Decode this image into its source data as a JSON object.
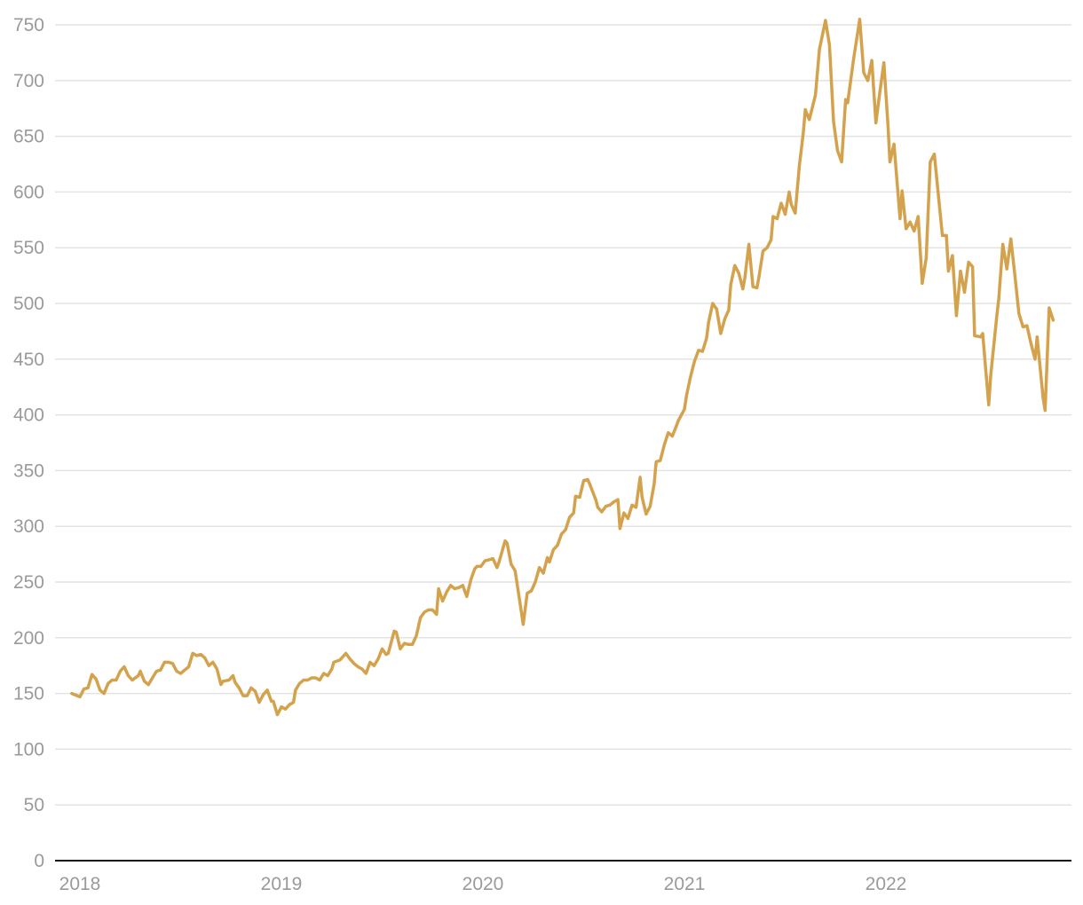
{
  "chart_data": {
    "type": "line",
    "title": "",
    "xlabel": "",
    "ylabel": "",
    "ylim": [
      0,
      750
    ],
    "yticks": [
      "0",
      "50",
      "100",
      "150",
      "200",
      "250",
      "300",
      "350",
      "400",
      "450",
      "500",
      "550",
      "600",
      "650",
      "700",
      "750"
    ],
    "xticks": [
      "2018",
      "2019",
      "2020",
      "2021",
      "2022"
    ],
    "grid": "horizontal",
    "line_color": "#d4a24c",
    "series": [
      {
        "x": [
          2017.96,
          2018.0,
          2018.02,
          2018.04,
          2018.06,
          2018.08,
          2018.1,
          2018.12,
          2018.14,
          2018.16,
          2018.18,
          2018.2,
          2018.22,
          2018.24,
          2018.26,
          2018.29,
          2018.3,
          2018.32,
          2018.34,
          2018.36,
          2018.38,
          2018.4,
          2018.42,
          2018.44,
          2018.46,
          2018.48,
          2018.5,
          2018.52,
          2018.54,
          2018.56,
          2018.58,
          2018.6,
          2018.62,
          2018.64,
          2018.66,
          2018.68,
          2018.7,
          2018.71,
          2018.74,
          2018.76,
          2018.77,
          2018.79,
          2018.81,
          2018.83,
          2018.85,
          2018.87,
          2018.89,
          2018.91,
          2018.93,
          2018.95,
          2018.96,
          2018.98,
          2019.0,
          2019.02,
          2019.04,
          2019.06,
          2019.07,
          2019.09,
          2019.11,
          2019.13,
          2019.15,
          2019.17,
          2019.19,
          2019.21,
          2019.23,
          2019.25,
          2019.26,
          2019.29,
          2019.3,
          2019.32,
          2019.34,
          2019.36,
          2019.38,
          2019.4,
          2019.42,
          2019.44,
          2019.46,
          2019.48,
          2019.5,
          2019.52,
          2019.53,
          2019.56,
          2019.57,
          2019.59,
          2019.61,
          2019.63,
          2019.65,
          2019.67,
          2019.69,
          2019.71,
          2019.73,
          2019.75,
          2019.77,
          2019.78,
          2019.8,
          2019.82,
          2019.84,
          2019.86,
          2019.88,
          2019.9,
          2019.92,
          2019.94,
          2019.96,
          2019.97,
          2019.99,
          2020.01,
          2020.03,
          2020.05,
          2020.07,
          2020.08,
          2020.11,
          2020.12,
          2020.14,
          2020.16,
          2020.18,
          2020.2,
          2020.22,
          2020.24,
          2020.26,
          2020.28,
          2020.3,
          2020.32,
          2020.33,
          2020.35,
          2020.37,
          2020.39,
          2020.41,
          2020.43,
          2020.45,
          2020.46,
          2020.48,
          2020.5,
          2020.52,
          2020.53,
          2020.56,
          2020.57,
          2020.59,
          2020.61,
          2020.63,
          2020.65,
          2020.67,
          2020.68,
          2020.7,
          2020.72,
          2020.74,
          2020.76,
          2020.78,
          2020.79,
          2020.81,
          2020.83,
          2020.85,
          2020.86,
          2020.88,
          2020.9,
          2020.92,
          2020.94,
          2020.96,
          2020.97,
          2021.0,
          2021.01,
          2021.03,
          2021.05,
          2021.07,
          2021.09,
          2021.11,
          2021.12,
          2021.14,
          2021.16,
          2021.18,
          2021.2,
          2021.22,
          2021.23,
          2021.25,
          2021.27,
          2021.29,
          2021.3,
          2021.32,
          2021.34,
          2021.36,
          2021.37,
          2021.39,
          2021.41,
          2021.43,
          2021.44,
          2021.46,
          2021.48,
          2021.5,
          2021.52,
          2021.53,
          2021.55,
          2021.57,
          2021.59,
          2021.6,
          2021.62,
          2021.65,
          2021.67,
          2021.7,
          2021.72,
          2021.74,
          2021.76,
          2021.78,
          2021.8,
          2021.81,
          2021.84,
          2021.87,
          2021.89,
          2021.91,
          2021.93,
          2021.95,
          2021.97,
          2021.99,
          2022.01,
          2022.02,
          2022.04,
          2022.07,
          2022.08,
          2022.1,
          2022.12,
          2022.14,
          2022.16,
          2022.18,
          2022.2,
          2022.22,
          2022.24,
          2022.28,
          2022.3,
          2022.31,
          2022.33,
          2022.35,
          2022.37,
          2022.39,
          2022.41,
          2022.43,
          2022.44,
          2022.47,
          2022.48,
          2022.51,
          2022.52,
          2022.55,
          2022.56,
          2022.58,
          2022.6,
          2022.62,
          2022.64,
          2022.66,
          2022.68,
          2022.7,
          2022.72,
          2022.74,
          2022.75,
          2022.78,
          2022.79,
          2022.81,
          2022.83
        ],
        "values": [
          150,
          147,
          154,
          155,
          167,
          163,
          153,
          150,
          159,
          162,
          162,
          170,
          174,
          166,
          162,
          166,
          170,
          161,
          158,
          164,
          170,
          171,
          178,
          178,
          177,
          170,
          168,
          171,
          174,
          186,
          184,
          185,
          182,
          175,
          178,
          172,
          158,
          161,
          162,
          166,
          160,
          155,
          148,
          148,
          155,
          152,
          142,
          149,
          153,
          143,
          143,
          131,
          138,
          136,
          140,
          142,
          153,
          159,
          162,
          162,
          164,
          164,
          162,
          168,
          166,
          172,
          178,
          180,
          182,
          186,
          181,
          177,
          174,
          172,
          168,
          178,
          175,
          181,
          190,
          185,
          186,
          206,
          205,
          190,
          195,
          194,
          194,
          202,
          218,
          223,
          225,
          225,
          221,
          244,
          233,
          241,
          247,
          244,
          245,
          247,
          237,
          252,
          262,
          264,
          264,
          269,
          270,
          271,
          263,
          268,
          287,
          285,
          266,
          260,
          236,
          212,
          240,
          242,
          250,
          263,
          258,
          272,
          268,
          279,
          283,
          293,
          297,
          308,
          312,
          327,
          326,
          341,
          342,
          338,
          324,
          317,
          313,
          318,
          319,
          322,
          324,
          298,
          312,
          307,
          319,
          317,
          344,
          326,
          311,
          318,
          338,
          358,
          359,
          373,
          384,
          381,
          390,
          395,
          405,
          417,
          434,
          448,
          458,
          457,
          469,
          483,
          500,
          495,
          473,
          486,
          494,
          517,
          534,
          527,
          513,
          523,
          553,
          515,
          514,
          524,
          547,
          550,
          557,
          578,
          576,
          590,
          580,
          600,
          589,
          581,
          623,
          653,
          674,
          665,
          687,
          728,
          754,
          732,
          663,
          637,
          627,
          683,
          680,
          720,
          755,
          707,
          700,
          718,
          662,
          690,
          716,
          660,
          627,
          643,
          576,
          601,
          567,
          573,
          565,
          578,
          518,
          541,
          627,
          634,
          561,
          561,
          529,
          543,
          489,
          529,
          510,
          537,
          533,
          471,
          470,
          473,
          409,
          435,
          488,
          504,
          553,
          531,
          558,
          525,
          491,
          479,
          480,
          464,
          450,
          470,
          415,
          404,
          496,
          485
        ]
      }
    ]
  }
}
